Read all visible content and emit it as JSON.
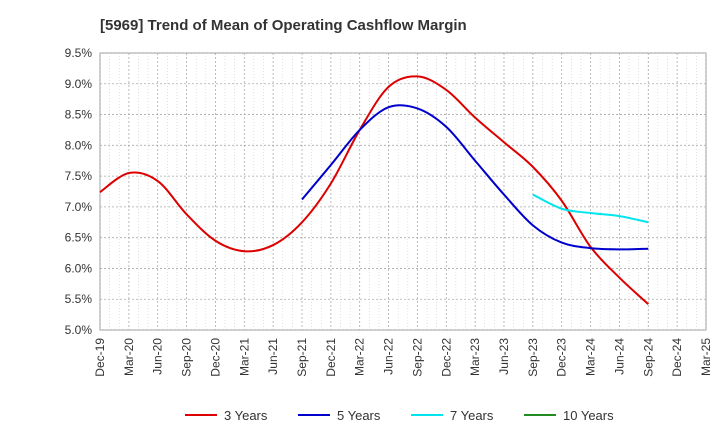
{
  "chart_data": {
    "type": "line",
    "title": "[5969]  Trend of Mean of Operating Cashflow Margin",
    "xlabel": "",
    "ylabel": "",
    "x_tick_labels": [
      "Dec-19",
      "Mar-20",
      "Jun-20",
      "Sep-20",
      "Dec-20",
      "Mar-21",
      "Jun-21",
      "Sep-21",
      "Dec-21",
      "Mar-22",
      "Jun-22",
      "Sep-22",
      "Dec-22",
      "Mar-23",
      "Jun-23",
      "Sep-23",
      "Dec-23",
      "Mar-24",
      "Jun-24",
      "Sep-24",
      "Dec-24",
      "Mar-25"
    ],
    "y_tick_labels": [
      "9.5%",
      "9.0%",
      "8.5%",
      "8.0%",
      "7.5%",
      "7.0%",
      "6.5%",
      "6.0%",
      "5.5%",
      "5.0%"
    ],
    "y_ticks": [
      9.5,
      9.0,
      8.5,
      8.0,
      7.5,
      7.0,
      6.5,
      6.0,
      5.5,
      5.0
    ],
    "ylim": [
      5.0,
      9.5
    ],
    "x_count": 22,
    "grid": true,
    "legend_position": "bottom",
    "series": [
      {
        "name": "3 Years",
        "color": "#dd0000",
        "x_index": [
          0,
          1,
          2,
          3,
          4,
          5,
          6,
          7,
          8,
          9,
          10,
          11,
          12,
          13,
          14,
          15,
          16,
          17,
          18,
          19
        ],
        "values": [
          7.24,
          7.55,
          7.42,
          6.88,
          6.45,
          6.28,
          6.38,
          6.75,
          7.38,
          8.25,
          8.95,
          9.12,
          8.9,
          8.45,
          8.05,
          7.65,
          7.1,
          6.35,
          5.85,
          5.42
        ]
      },
      {
        "name": "5 Years",
        "color": "#0000cc",
        "x_index": [
          7,
          8,
          9,
          10,
          11,
          12,
          13,
          14,
          15,
          16,
          17,
          18,
          19
        ],
        "values": [
          7.12,
          7.68,
          8.25,
          8.62,
          8.6,
          8.3,
          7.75,
          7.2,
          6.7,
          6.42,
          6.33,
          6.31,
          6.32
        ]
      },
      {
        "name": "7 Years",
        "color": "#00e5ee",
        "x_index": [
          15,
          16,
          17,
          18,
          19
        ],
        "values": [
          7.2,
          6.97,
          6.9,
          6.85,
          6.75
        ]
      },
      {
        "name": "10 Years",
        "color": "#228b22",
        "x_index": [],
        "values": []
      }
    ]
  }
}
